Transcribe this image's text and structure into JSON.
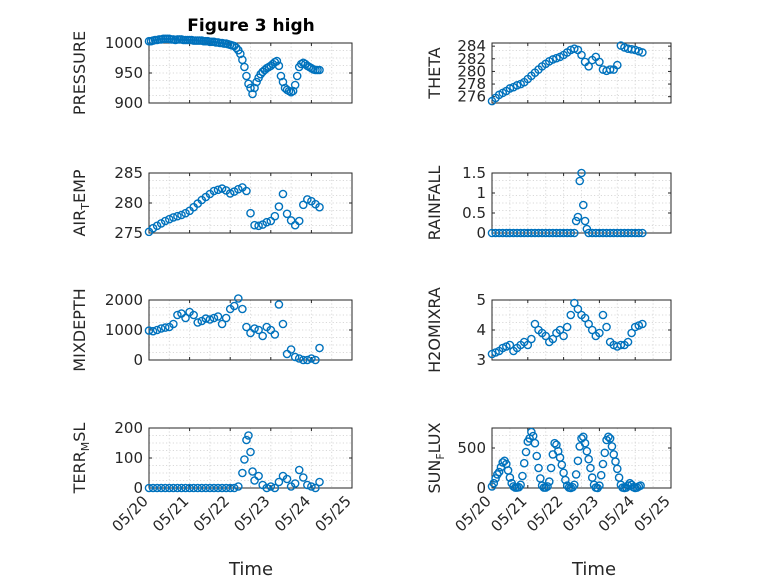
{
  "figure": {
    "title": "Figure 3 high",
    "xlabel": "Time",
    "marker_color": "#0072BD",
    "x_ticks": [
      "05/20",
      "05/21",
      "05/22",
      "05/23",
      "05/24",
      "05/25"
    ]
  },
  "chart_data": [
    {
      "type": "scatter",
      "ylabel": "PRESSURE",
      "ylim": [
        900,
        1000
      ],
      "yticks": [
        900,
        950,
        1000
      ],
      "grid": true,
      "x": [
        0,
        0.05,
        0.1,
        0.15,
        0.2,
        0.25,
        0.3,
        0.35,
        0.4,
        0.45,
        0.5,
        0.55,
        0.6,
        0.65,
        0.7,
        0.75,
        0.8,
        0.85,
        0.9,
        0.95,
        1.0,
        1.05,
        1.1,
        1.15,
        1.2,
        1.25,
        1.3,
        1.35,
        1.4,
        1.45,
        1.5,
        1.55,
        1.6,
        1.65,
        1.7,
        1.75,
        1.8,
        1.85,
        1.9,
        1.95,
        2.0,
        2.05,
        2.1,
        2.15,
        2.2,
        2.25,
        2.3,
        2.35,
        2.4,
        2.45,
        2.5,
        2.55,
        2.6,
        2.65,
        2.7,
        2.75,
        2.8,
        2.85,
        2.9,
        2.95,
        3.0,
        3.05,
        3.1,
        3.15,
        3.2,
        3.25,
        3.3,
        3.35,
        3.4,
        3.45,
        3.5,
        3.55,
        3.6,
        3.65,
        3.7,
        3.75,
        3.8,
        3.85,
        3.9,
        3.95,
        4.0,
        4.05,
        4.1,
        4.15,
        4.2
      ],
      "y": [
        1003,
        1003,
        1004,
        1005,
        1005,
        1006,
        1006,
        1007,
        1007,
        1007,
        1007,
        1006,
        1006,
        1005,
        1006,
        1006,
        1006,
        1005,
        1005,
        1005,
        1005,
        1005,
        1004,
        1004,
        1004,
        1004,
        1004,
        1003,
        1003,
        1003,
        1002,
        1002,
        1002,
        1001,
        1001,
        1000,
        1000,
        999,
        999,
        998,
        997,
        996,
        995,
        992,
        988,
        982,
        972,
        960,
        945,
        932,
        925,
        915,
        925,
        935,
        942,
        948,
        952,
        955,
        958,
        960,
        962,
        965,
        968,
        970,
        962,
        945,
        935,
        925,
        922,
        920,
        918,
        920,
        930,
        945,
        960,
        965,
        967,
        965,
        962,
        960,
        958,
        956,
        955,
        955,
        955
      ]
    },
    {
      "type": "scatter",
      "ylabel": "THETA",
      "ylim": [
        275,
        284.5
      ],
      "yticks": [
        276,
        278,
        280,
        282,
        284
      ],
      "grid": true,
      "x": [
        0,
        0.1,
        0.2,
        0.3,
        0.4,
        0.5,
        0.6,
        0.7,
        0.8,
        0.9,
        1.0,
        1.1,
        1.2,
        1.3,
        1.4,
        1.5,
        1.6,
        1.7,
        1.8,
        1.9,
        2.0,
        2.1,
        2.2,
        2.3,
        2.4,
        2.5,
        2.6,
        2.7,
        2.8,
        2.9,
        3.0,
        3.1,
        3.2,
        3.3,
        3.4,
        3.5,
        3.6,
        3.7,
        3.8,
        3.9,
        4.0,
        4.1,
        4.2
      ],
      "y": [
        275.3,
        275.8,
        276.3,
        276.6,
        276.9,
        277.3,
        277.5,
        277.8,
        278.0,
        278.3,
        278.8,
        279.3,
        279.8,
        280.3,
        280.8,
        281.2,
        281.6,
        281.9,
        282.1,
        282.3,
        282.6,
        283.0,
        283.4,
        283.6,
        283.4,
        282.6,
        281.5,
        280.8,
        281.8,
        282.3,
        281.5,
        280.3,
        280.1,
        280.3,
        280.3,
        281.0,
        284.1,
        283.8,
        283.6,
        283.5,
        283.4,
        283.2,
        283.0
      ]
    },
    {
      "type": "scatter",
      "ylabel": "AIR_TEMP",
      "ylim": [
        275,
        285
      ],
      "yticks": [
        275,
        280,
        285
      ],
      "grid": true,
      "x": [
        0,
        0.1,
        0.2,
        0.3,
        0.4,
        0.5,
        0.6,
        0.7,
        0.8,
        0.9,
        1.0,
        1.1,
        1.2,
        1.3,
        1.4,
        1.5,
        1.6,
        1.7,
        1.8,
        1.9,
        2.0,
        2.1,
        2.2,
        2.3,
        2.4,
        2.5,
        2.6,
        2.7,
        2.8,
        2.9,
        3.0,
        3.1,
        3.2,
        3.3,
        3.4,
        3.5,
        3.6,
        3.7,
        3.8,
        3.9,
        4.0,
        4.1,
        4.2
      ],
      "y": [
        275.2,
        275.8,
        276.2,
        276.6,
        277.0,
        277.3,
        277.6,
        277.8,
        278.0,
        278.3,
        278.7,
        279.3,
        279.9,
        280.5,
        281.0,
        281.5,
        282.0,
        282.2,
        282.4,
        282.1,
        281.6,
        281.9,
        282.3,
        282.6,
        282.0,
        278.3,
        276.3,
        276.2,
        276.4,
        276.8,
        277.0,
        277.8,
        279.4,
        281.5,
        278.2,
        277.1,
        276.3,
        277.0,
        279.7,
        280.6,
        280.3,
        279.8,
        279.3
      ]
    },
    {
      "type": "scatter",
      "ylabel": "RAINFALL",
      "ylim": [
        0,
        1.5
      ],
      "yticks": [
        0,
        0.5,
        1,
        1.5
      ],
      "grid": true,
      "x": [
        0,
        0.1,
        0.2,
        0.3,
        0.4,
        0.5,
        0.6,
        0.7,
        0.8,
        0.9,
        1.0,
        1.1,
        1.2,
        1.3,
        1.4,
        1.5,
        1.6,
        1.7,
        1.8,
        1.9,
        2.0,
        2.1,
        2.2,
        2.3,
        2.35,
        2.4,
        2.45,
        2.5,
        2.55,
        2.6,
        2.65,
        2.7,
        2.8,
        2.9,
        3.0,
        3.1,
        3.2,
        3.3,
        3.4,
        3.5,
        3.6,
        3.7,
        3.8,
        3.9,
        4.0,
        4.1,
        4.2
      ],
      "y": [
        0,
        0,
        0,
        0,
        0,
        0,
        0,
        0,
        0,
        0,
        0,
        0,
        0,
        0,
        0,
        0,
        0,
        0,
        0,
        0,
        0,
        0,
        0,
        0,
        0.3,
        0.4,
        1.3,
        1.5,
        0.7,
        0.3,
        0.1,
        0,
        0,
        0,
        0,
        0,
        0,
        0,
        0,
        0,
        0,
        0,
        0,
        0,
        0,
        0,
        0
      ]
    },
    {
      "type": "scatter",
      "ylabel": "MIXDEPTH",
      "ylim": [
        0,
        2000
      ],
      "yticks": [
        0,
        1000,
        2000
      ],
      "grid": true,
      "x": [
        0,
        0.1,
        0.2,
        0.3,
        0.4,
        0.5,
        0.6,
        0.7,
        0.8,
        0.9,
        1.0,
        1.1,
        1.2,
        1.3,
        1.4,
        1.5,
        1.6,
        1.7,
        1.8,
        1.9,
        2.0,
        2.1,
        2.2,
        2.3,
        2.4,
        2.5,
        2.6,
        2.7,
        2.8,
        2.9,
        3.0,
        3.1,
        3.2,
        3.3,
        3.4,
        3.5,
        3.6,
        3.7,
        3.8,
        3.9,
        4.0,
        4.1,
        4.2
      ],
      "y": [
        980,
        960,
        1000,
        1050,
        1080,
        1100,
        1200,
        1500,
        1550,
        1400,
        1600,
        1500,
        1250,
        1300,
        1380,
        1350,
        1400,
        1450,
        1200,
        1400,
        1700,
        1800,
        2050,
        1700,
        1100,
        900,
        1050,
        1000,
        800,
        1100,
        1000,
        850,
        1850,
        1200,
        200,
        350,
        100,
        50,
        0,
        0,
        50,
        0,
        400
      ]
    },
    {
      "type": "scatter",
      "ylabel": "H2OMIXRA",
      "ylim": [
        3,
        5
      ],
      "yticks": [
        3,
        4,
        5
      ],
      "grid": true,
      "x": [
        0,
        0.1,
        0.2,
        0.3,
        0.4,
        0.5,
        0.6,
        0.7,
        0.8,
        0.9,
        1.0,
        1.1,
        1.2,
        1.3,
        1.4,
        1.5,
        1.6,
        1.7,
        1.8,
        1.9,
        2.0,
        2.1,
        2.2,
        2.3,
        2.4,
        2.5,
        2.6,
        2.7,
        2.8,
        2.9,
        3.0,
        3.1,
        3.2,
        3.3,
        3.4,
        3.5,
        3.6,
        3.7,
        3.8,
        3.9,
        4.0,
        4.1,
        4.2
      ],
      "y": [
        3.2,
        3.25,
        3.3,
        3.4,
        3.45,
        3.5,
        3.3,
        3.4,
        3.5,
        3.6,
        3.5,
        3.7,
        4.2,
        4.0,
        3.9,
        3.8,
        3.6,
        3.7,
        3.9,
        4.0,
        3.8,
        4.1,
        4.5,
        4.9,
        4.7,
        4.5,
        4.4,
        4.2,
        4.0,
        3.8,
        3.9,
        4.5,
        4.1,
        3.6,
        3.5,
        3.45,
        3.5,
        3.5,
        3.6,
        3.9,
        4.1,
        4.15,
        4.2
      ]
    },
    {
      "type": "scatter",
      "ylabel": "TERR_MSL",
      "ylim": [
        0,
        200
      ],
      "yticks": [
        0,
        100,
        200
      ],
      "grid": true,
      "x": [
        0,
        0.1,
        0.2,
        0.3,
        0.4,
        0.5,
        0.6,
        0.7,
        0.8,
        0.9,
        1.0,
        1.1,
        1.2,
        1.3,
        1.4,
        1.5,
        1.6,
        1.7,
        1.8,
        1.9,
        2.0,
        2.1,
        2.2,
        2.3,
        2.35,
        2.4,
        2.45,
        2.5,
        2.55,
        2.6,
        2.7,
        2.8,
        2.9,
        3.0,
        3.1,
        3.2,
        3.3,
        3.4,
        3.5,
        3.6,
        3.7,
        3.8,
        3.9,
        4.0,
        4.1,
        4.2
      ],
      "y": [
        0,
        0,
        0,
        0,
        0,
        0,
        0,
        0,
        0,
        0,
        0,
        0,
        0,
        0,
        0,
        0,
        0,
        0,
        0,
        0,
        0,
        0,
        5,
        50,
        95,
        160,
        175,
        120,
        55,
        25,
        40,
        10,
        0,
        5,
        0,
        20,
        40,
        30,
        5,
        15,
        60,
        35,
        10,
        5,
        0,
        20
      ]
    },
    {
      "type": "scatter",
      "ylabel": "SUN_FLUX",
      "ylim": [
        0,
        750
      ],
      "yticks": [
        0,
        500
      ],
      "grid": true,
      "x": [
        0,
        0.05,
        0.1,
        0.15,
        0.2,
        0.25,
        0.3,
        0.35,
        0.4,
        0.45,
        0.5,
        0.55,
        0.6,
        0.65,
        0.7,
        0.75,
        0.8,
        0.85,
        0.9,
        0.95,
        1.0,
        1.05,
        1.1,
        1.15,
        1.2,
        1.25,
        1.3,
        1.35,
        1.4,
        1.45,
        1.5,
        1.55,
        1.6,
        1.65,
        1.7,
        1.75,
        1.8,
        1.85,
        1.9,
        1.95,
        2.0,
        2.05,
        2.1,
        2.15,
        2.2,
        2.25,
        2.3,
        2.35,
        2.4,
        2.45,
        2.5,
        2.55,
        2.6,
        2.65,
        2.7,
        2.75,
        2.8,
        2.85,
        2.9,
        2.95,
        3.0,
        3.05,
        3.1,
        3.15,
        3.2,
        3.25,
        3.3,
        3.35,
        3.4,
        3.45,
        3.5,
        3.55,
        3.6,
        3.65,
        3.7,
        3.75,
        3.8,
        3.85,
        3.9,
        3.95,
        4.0,
        4.05,
        4.1,
        4.15
      ],
      "y": [
        20,
        60,
        120,
        170,
        200,
        260,
        320,
        340,
        300,
        220,
        130,
        60,
        20,
        5,
        5,
        10,
        40,
        150,
        310,
        450,
        580,
        620,
        700,
        650,
        560,
        400,
        250,
        120,
        30,
        5,
        5,
        20,
        80,
        250,
        420,
        560,
        540,
        460,
        380,
        290,
        190,
        100,
        30,
        5,
        0,
        10,
        40,
        170,
        340,
        520,
        620,
        640,
        560,
        460,
        360,
        250,
        130,
        40,
        5,
        0,
        30,
        160,
        300,
        440,
        600,
        640,
        620,
        520,
        420,
        330,
        240,
        130,
        40,
        5,
        0,
        5,
        30,
        60,
        40,
        10,
        0,
        5,
        20,
        30
      ]
    }
  ]
}
